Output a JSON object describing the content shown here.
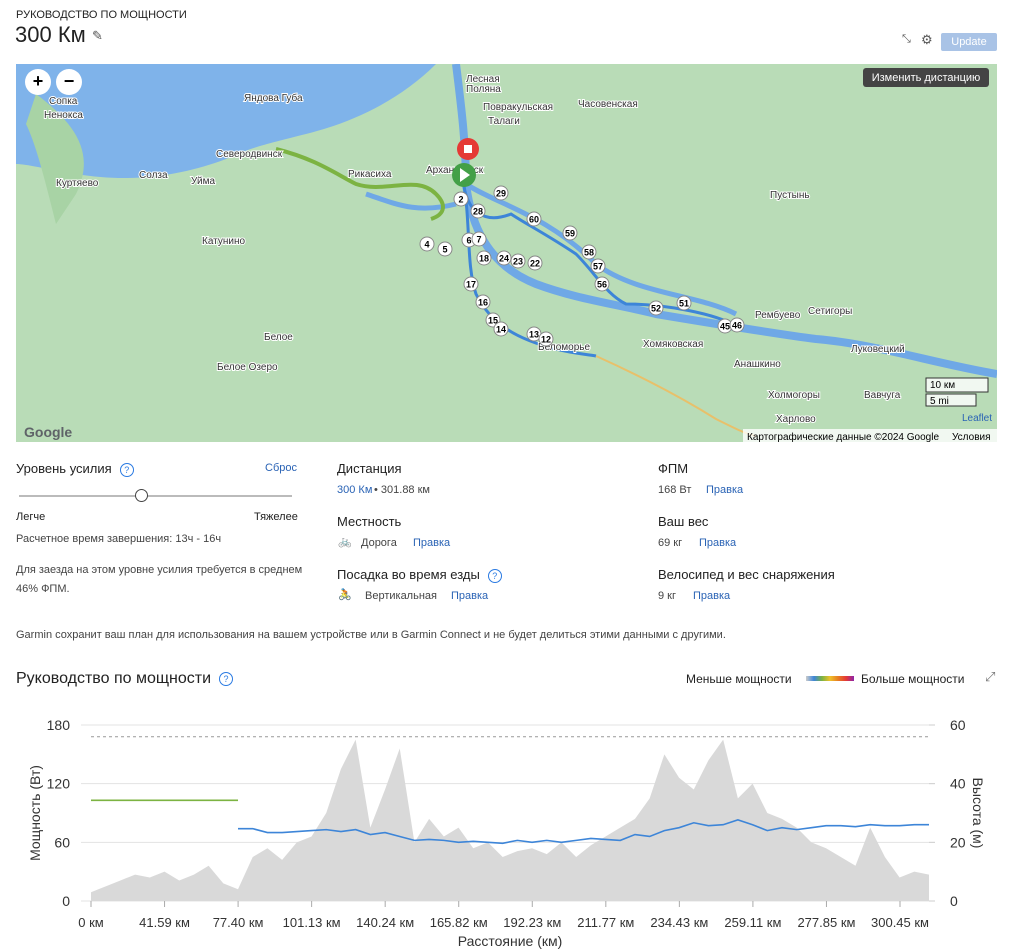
{
  "header": {
    "subtitle": "РУКОВОДСТВО ПО МОЩНОСТИ",
    "title": "300 Км",
    "update": "Update"
  },
  "map": {
    "change_distance": "Изменить дистанцию",
    "places": [
      "Сопка",
      "Ненокса",
      "Яндова Губа",
      "Лесная",
      "Поляна",
      "Повракульская",
      "Талаги",
      "Часовенская",
      "Северодвинск",
      "Рикасиха",
      "Архангельск",
      "Куртяево",
      "Солза",
      "Уйма",
      "Пустынь",
      "Катунино",
      "Белое",
      "Белое Озеро",
      "Хомяковская",
      "Рембуево",
      "Сетигоры",
      "Луковецкий",
      "Анашкино",
      "Холмогоры",
      "Вавчуга",
      "Харлово",
      "Беломорье"
    ],
    "markers": [
      "2",
      "29",
      "28",
      "60",
      "6",
      "7",
      "4",
      "5",
      "59",
      "58",
      "18",
      "24",
      "23",
      "22",
      "57",
      "56",
      "17",
      "16",
      "51",
      "52",
      "15",
      "14",
      "13",
      "12",
      "45",
      "46"
    ],
    "scale_km": "10 км",
    "scale_mi": "5 mi",
    "leaflet": "Leaflet",
    "attribution": "Картографические данные ©2024 Google",
    "terms": "Условия",
    "google": "Google"
  },
  "effort": {
    "label": "Уровень усилия",
    "reset": "Сброс",
    "easier": "Легче",
    "harder": "Тяжелее",
    "estimate": "Расчетное время завершения: 13ч - 16ч",
    "note1": "Для заезда на этом уровне усилия требуется в среднем",
    "note2": "46% ФПМ."
  },
  "distance": {
    "label": "Дистанция",
    "value": "300 Км",
    "detail": "• 301.88 км"
  },
  "terrain": {
    "label": "Местность",
    "value": "Дорога",
    "edit": "Правка"
  },
  "position": {
    "label": "Посадка во время езды",
    "value": "Вертикальная",
    "edit": "Правка"
  },
  "ftp": {
    "label": "ФПМ",
    "value": "168 Вт",
    "edit": "Правка"
  },
  "weight": {
    "label": "Ваш вес",
    "value": "69 кг",
    "edit": "Правка"
  },
  "bike": {
    "label": "Велосипед и вес снаряжения",
    "value": "9 кг",
    "edit": "Правка"
  },
  "privacy": "Garmin сохранит ваш план для использования на вашем устройстве или в Garmin Connect и не будет делиться этими данными с другими.",
  "chart_data": {
    "type": "line",
    "title": "Руководство по мощности",
    "legend_low": "Меньше мощности",
    "legend_high": "Больше мощности",
    "ylabel": "Мощность (Вт)",
    "y2label": "Высота (м)",
    "xlabel": "Расстояние (км)",
    "ylim": [
      0,
      180
    ],
    "yticks": [
      0,
      60,
      120,
      180
    ],
    "y2lim": [
      0,
      60
    ],
    "y2ticks": [
      0,
      20,
      40,
      60
    ],
    "xtick_labels": [
      "0 км",
      "41.59 км",
      "77.40 км",
      "101.13 км",
      "140.24 км",
      "165.82 км",
      "192.23 км",
      "211.77 км",
      "234.43 км",
      "259.11 км",
      "277.85 км",
      "300.45 км"
    ],
    "ftp_line": 168,
    "series": [
      {
        "color": "#7cb342",
        "values": [
          103,
          103,
          103,
          103,
          103,
          103,
          103,
          103,
          103,
          103,
          103,
          null,
          null,
          null,
          null,
          null,
          null,
          null,
          null,
          null,
          null,
          null,
          null,
          null,
          null,
          null,
          null,
          null,
          null,
          null,
          null,
          null,
          null,
          null,
          null,
          null,
          null,
          null,
          null,
          null,
          null,
          null,
          null,
          null,
          null,
          null,
          null,
          null,
          null,
          null,
          null,
          null,
          null,
          null,
          null,
          null,
          null,
          null
        ]
      },
      {
        "color": "#3d85d8",
        "values": [
          null,
          null,
          null,
          null,
          null,
          null,
          null,
          null,
          null,
          null,
          74,
          74,
          70,
          70,
          71,
          72,
          73,
          71,
          73,
          68,
          70,
          66,
          62,
          63,
          62,
          60,
          61,
          60,
          59,
          62,
          60,
          62,
          60,
          62,
          64,
          63,
          62,
          68,
          66,
          72,
          75,
          80,
          77,
          78,
          83,
          78,
          72,
          75,
          73,
          75,
          77,
          77,
          76,
          78,
          77,
          77,
          78,
          78
        ]
      },
      {
        "color": "#d9d9d9",
        "axis": "y2",
        "values": [
          3,
          5,
          7,
          9,
          8,
          10,
          7,
          9,
          12,
          6,
          4,
          15,
          18,
          14,
          20,
          22,
          30,
          45,
          55,
          25,
          38,
          52,
          20,
          28,
          22,
          25,
          18,
          20,
          15,
          17,
          18,
          16,
          20,
          15,
          19,
          22,
          25,
          28,
          35,
          50,
          42,
          38,
          48,
          55,
          35,
          40,
          30,
          28,
          25,
          20,
          18,
          15,
          12,
          25,
          15,
          8,
          10,
          9
        ]
      }
    ]
  }
}
